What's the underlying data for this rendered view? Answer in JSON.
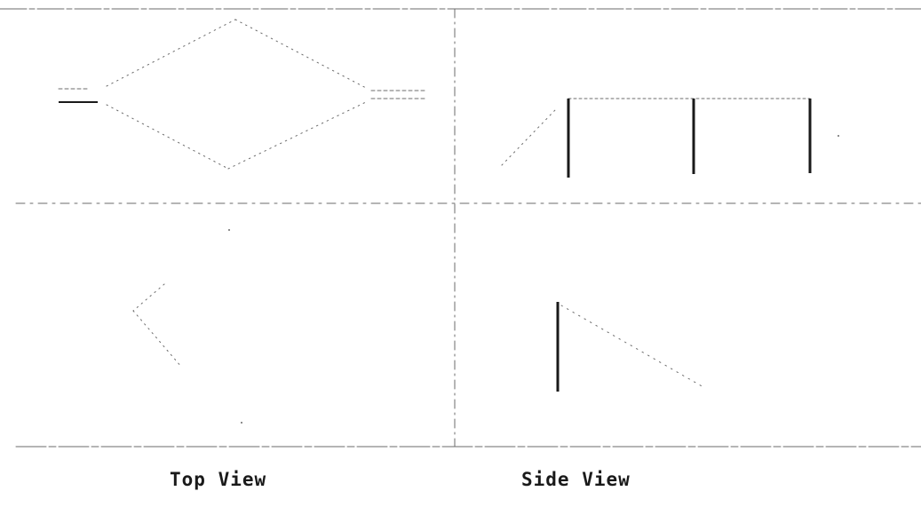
{
  "figure": {
    "captions": {
      "left": "Top View",
      "right": "Side View"
    },
    "colors": {
      "ink": "#1a1a1a",
      "faint": "#6b6b6b"
    }
  }
}
